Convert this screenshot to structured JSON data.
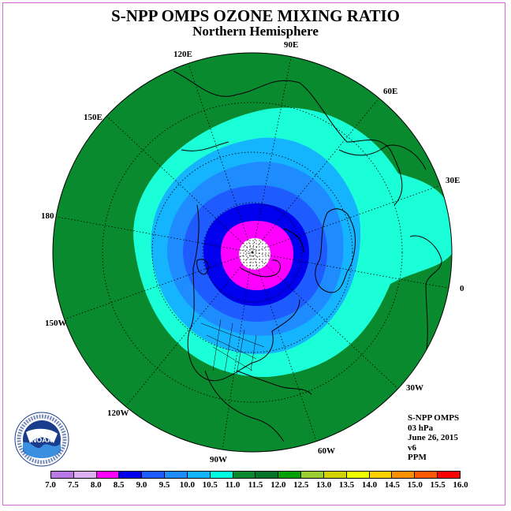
{
  "title": "S-NPP OMPS OZONE MIXING RATIO",
  "subtitle": "Northern Hemisphere",
  "longitude_labels": [
    "90E",
    "60E",
    "30E",
    "0",
    "30W",
    "60W",
    "90W",
    "120W",
    "150W",
    "180",
    "150E",
    "120E"
  ],
  "info": {
    "instrument": "S-NPP OMPS",
    "level": "03 hPa",
    "date": "June 26, 2015",
    "version": "v6",
    "units": "PPM"
  },
  "colorbar": {
    "ticks": [
      "7.0",
      "7.5",
      "8.0",
      "8.5",
      "9.0",
      "9.5",
      "10.0",
      "10.5",
      "11.0",
      "11.5",
      "12.0",
      "12.5",
      "13.0",
      "13.5",
      "14.0",
      "14.5",
      "15.0",
      "15.5",
      "16.0"
    ],
    "colors": [
      "#b97ae6",
      "#dcb0f0",
      "#ff00ff",
      "#0000ee",
      "#1e5cff",
      "#1e8cff",
      "#14b4ff",
      "#00ffe0",
      "#0a8a2e",
      "#07742a",
      "#00a000",
      "#9acd32",
      "#d2d200",
      "#f0ff00",
      "#ffd000",
      "#ff9000",
      "#ff5a00",
      "#ff0000",
      "#8b4513"
    ]
  },
  "logo": {
    "text": "NOAA",
    "ring_text": "NATIONAL OCEANIC AND ATMOSPHERIC ADMINISTRATION"
  }
}
